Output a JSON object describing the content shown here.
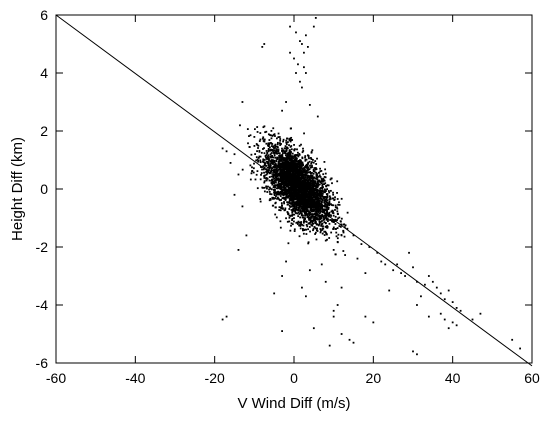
{
  "chart_data": {
    "type": "scatter",
    "title": "",
    "xlabel": "V Wind Diff (m/s)",
    "ylabel": "Height Diff (km)",
    "xlim": [
      -60,
      60
    ],
    "ylim": [
      -6,
      6
    ],
    "xticks": [
      -60,
      -40,
      -20,
      0,
      20,
      40,
      60
    ],
    "yticks": [
      -6,
      -4,
      -2,
      0,
      2,
      4,
      6
    ],
    "grid": false,
    "legend": "none",
    "marker_color": "#000000",
    "line_color": "#000000",
    "fit_line": {
      "x": [
        -60,
        60
      ],
      "y": [
        6.0,
        -6.1
      ]
    },
    "cluster": {
      "center": [
        1.0,
        0.1
      ],
      "approx_point_count": 3500,
      "x_range": [
        -14,
        14
      ],
      "y_range": [
        -2.3,
        2.6
      ],
      "trend_slope": -0.1
    },
    "outliers": [
      [
        -8,
        4.9
      ],
      [
        -7.5,
        5.0
      ],
      [
        -1,
        5.6
      ],
      [
        0.5,
        5.4
      ],
      [
        1.5,
        5.1
      ],
      [
        3,
        5.3
      ],
      [
        5,
        5.6
      ],
      [
        5.5,
        5.9
      ],
      [
        2,
        5.0
      ],
      [
        3.5,
        4.9
      ],
      [
        -1,
        4.7
      ],
      [
        0,
        4.5
      ],
      [
        2.5,
        4.7
      ],
      [
        1,
        4.3
      ],
      [
        2.5,
        4.2
      ],
      [
        0.5,
        4.0
      ],
      [
        3,
        4.0
      ],
      [
        1.5,
        3.7
      ],
      [
        2,
        3.5
      ],
      [
        -2,
        3.0
      ],
      [
        -13,
        3.0
      ],
      [
        -3,
        2.7
      ],
      [
        4,
        2.9
      ],
      [
        6,
        2.5
      ],
      [
        -18,
        1.4
      ],
      [
        -17,
        1.3
      ],
      [
        -15,
        1.2
      ],
      [
        -16,
        0.9
      ],
      [
        -14,
        0.5
      ],
      [
        -15,
        -0.2
      ],
      [
        -13,
        -0.6
      ],
      [
        -12,
        -1.6
      ],
      [
        -14,
        -2.1
      ],
      [
        10,
        -2.1
      ],
      [
        12,
        -1.6
      ],
      [
        15,
        -1.6
      ],
      [
        16,
        -2.4
      ],
      [
        18,
        -2.9
      ],
      [
        17,
        -1.9
      ],
      [
        19,
        -2.0
      ],
      [
        21,
        -2.2
      ],
      [
        22,
        -2.5
      ],
      [
        23,
        -2.6
      ],
      [
        25,
        -2.8
      ],
      [
        26,
        -2.6
      ],
      [
        27,
        -2.9
      ],
      [
        28,
        -3.0
      ],
      [
        29,
        -2.2
      ],
      [
        30,
        -2.7
      ],
      [
        31,
        -3.2
      ],
      [
        33,
        -3.3
      ],
      [
        34,
        -3.0
      ],
      [
        35,
        -3.2
      ],
      [
        36,
        -3.4
      ],
      [
        37,
        -3.6
      ],
      [
        38,
        -3.8
      ],
      [
        39,
        -3.5
      ],
      [
        40,
        -3.9
      ],
      [
        41,
        -4.1
      ],
      [
        42,
        -4.2
      ],
      [
        45,
        -4.5
      ],
      [
        32,
        -3.7
      ],
      [
        24,
        -3.5
      ],
      [
        12,
        -3.4
      ],
      [
        18,
        -4.4
      ],
      [
        20,
        -4.6
      ],
      [
        31,
        -4.0
      ],
      [
        34,
        -4.4
      ],
      [
        37,
        -4.3
      ],
      [
        39,
        -4.8
      ],
      [
        41,
        -4.7
      ],
      [
        38,
        -4.5
      ],
      [
        40,
        -4.6
      ],
      [
        2,
        -3.4
      ],
      [
        3,
        -3.7
      ],
      [
        4,
        -2.8
      ],
      [
        -3,
        -3.0
      ],
      [
        -2,
        -2.5
      ],
      [
        -18,
        -4.5
      ],
      [
        -17,
        -4.4
      ],
      [
        10,
        -4.2
      ],
      [
        11,
        -4.0
      ],
      [
        10,
        -4.4
      ],
      [
        12,
        -5.0
      ],
      [
        8,
        -3.2
      ],
      [
        7,
        -2.6
      ],
      [
        -5,
        -3.6
      ],
      [
        -3,
        -4.9
      ],
      [
        5,
        -4.8
      ],
      [
        15,
        -5.3
      ],
      [
        14,
        -5.2
      ],
      [
        30,
        -5.6
      ],
      [
        31,
        -5.7
      ],
      [
        9,
        -5.4
      ],
      [
        47,
        -4.3
      ],
      [
        55,
        -5.2
      ],
      [
        57,
        -5.5
      ]
    ]
  }
}
